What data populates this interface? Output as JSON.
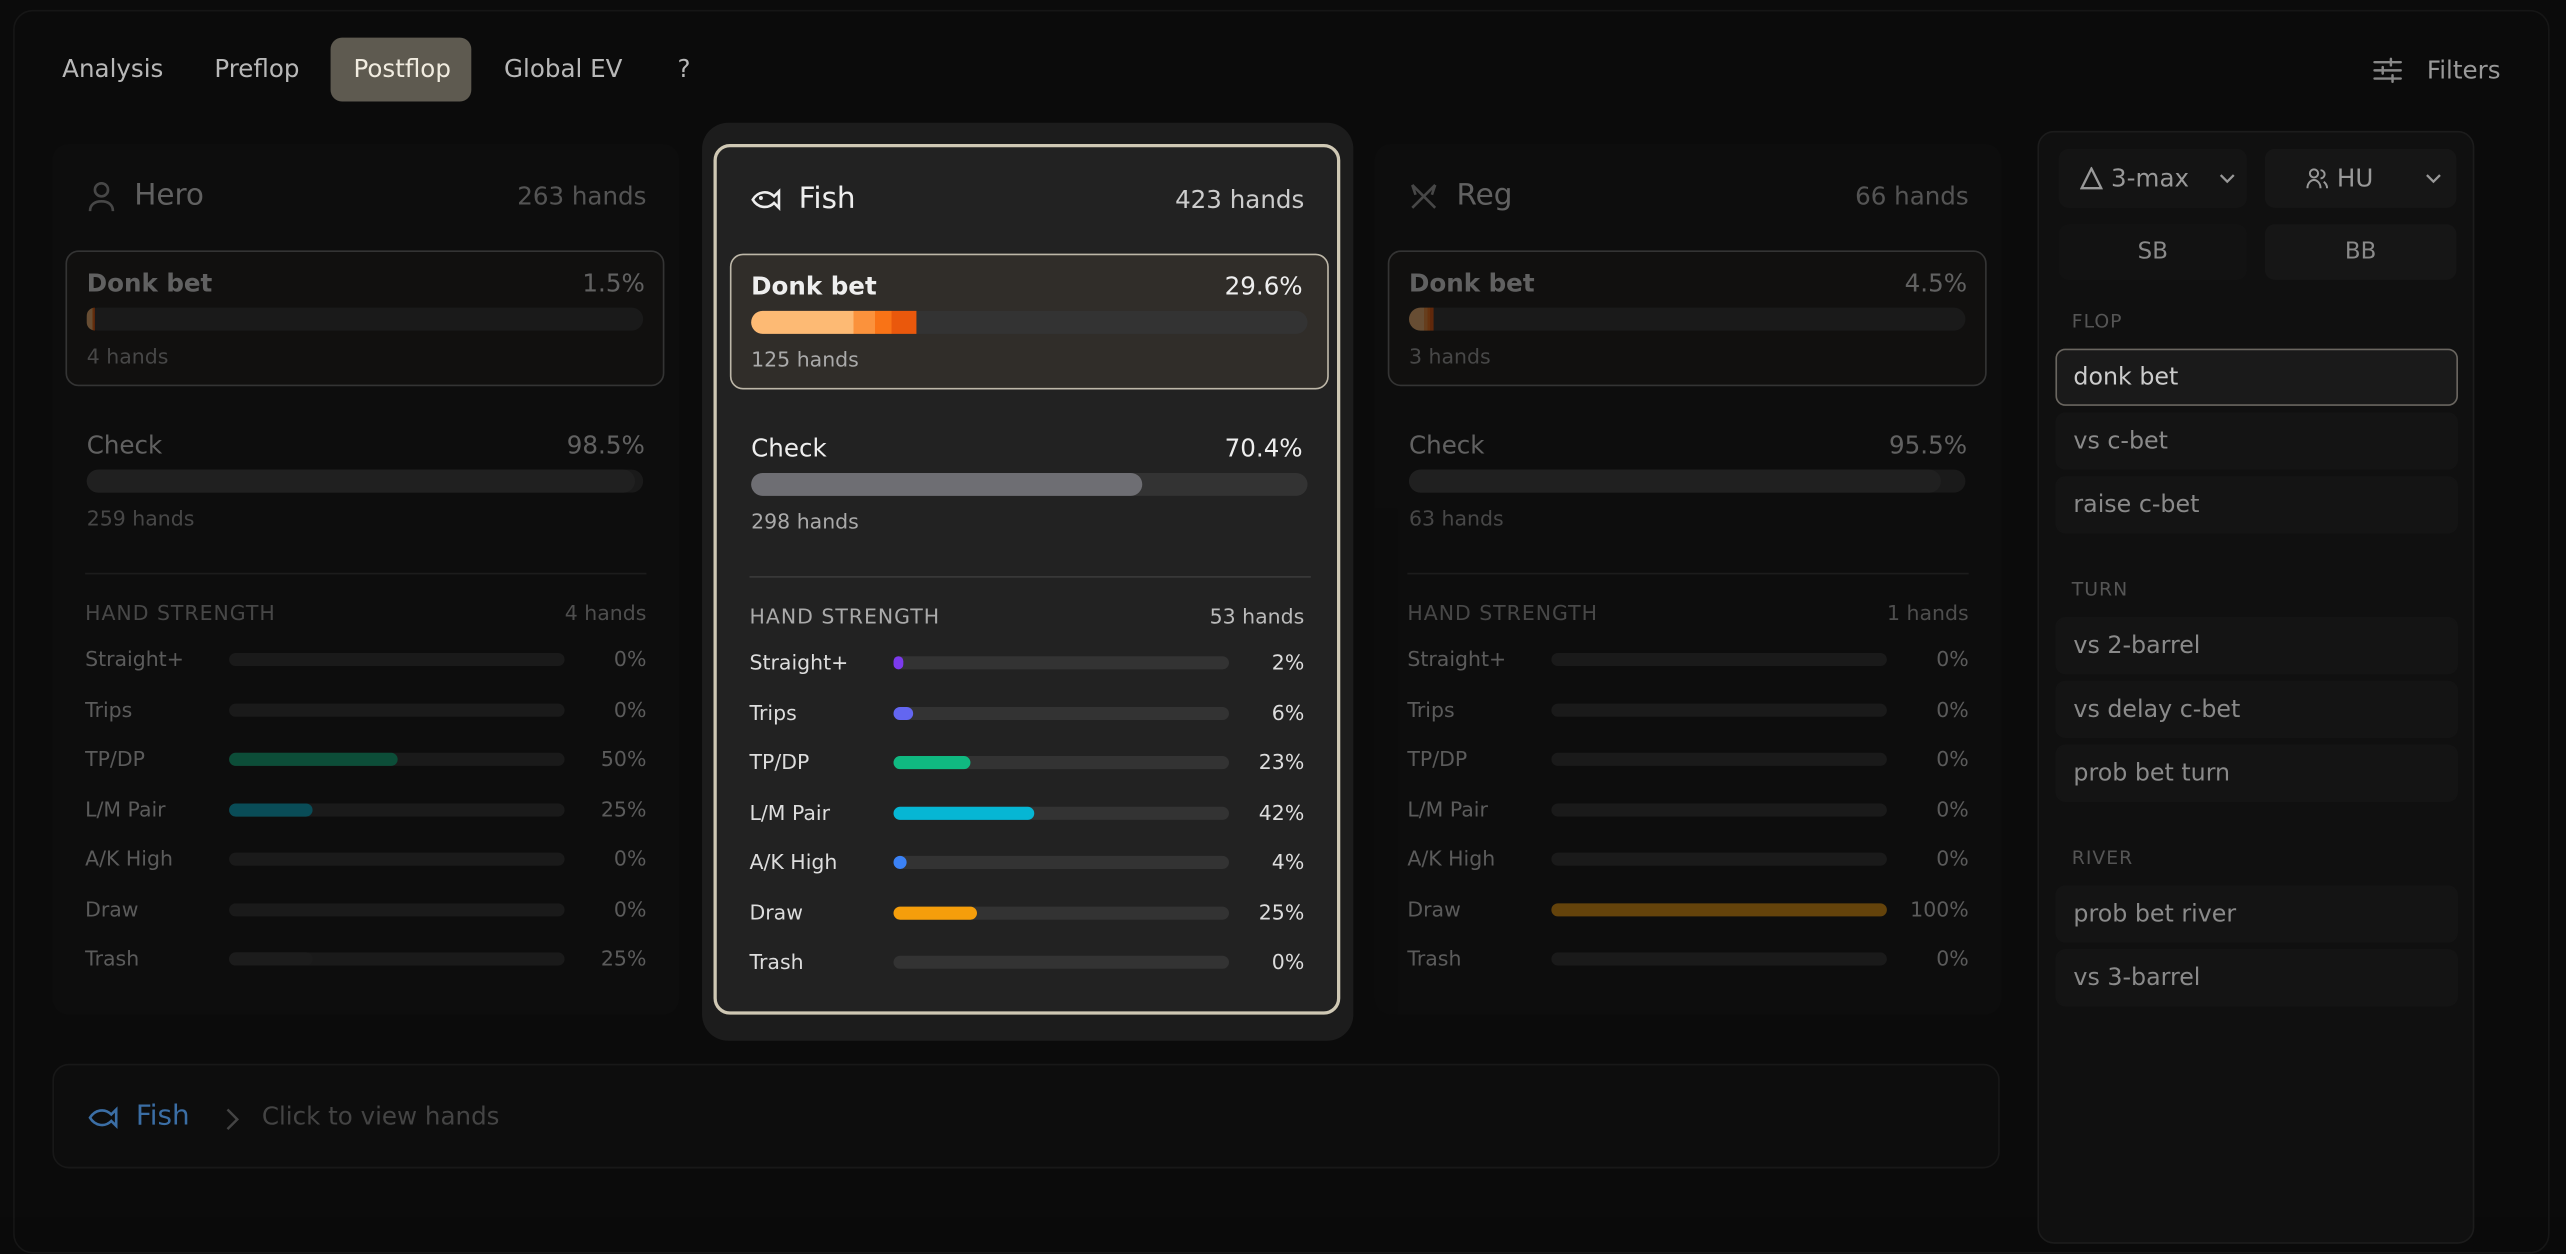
{
  "tabs": {
    "items": [
      "Analysis",
      "Preflop",
      "Postflop",
      "Global EV",
      "?"
    ],
    "active": 2
  },
  "filters": "Filters",
  "players": [
    {
      "name": "Hero",
      "hands": "263 hands",
      "actions": [
        {
          "name": "Donk bet",
          "pct": {
            "value": 1.5,
            "label": "1.5%"
          },
          "hands": "4 hands"
        },
        {
          "name": "Check",
          "pct": {
            "value": 98.5,
            "label": "98.5%"
          },
          "hands": "259 hands"
        }
      ],
      "strength_title": "HAND STRENGTH",
      "strength_hands": "4 hands",
      "rows": [
        {
          "name": "Straight+",
          "pct": {
            "value": 0,
            "label": "0%"
          }
        },
        {
          "name": "Trips",
          "pct": {
            "value": 0,
            "label": "0%"
          }
        },
        {
          "name": "TP/DP",
          "pct": {
            "value": 50,
            "label": "50%"
          }
        },
        {
          "name": "L/M Pair",
          "pct": {
            "value": 25,
            "label": "25%"
          }
        },
        {
          "name": "A/K High",
          "pct": {
            "value": 0,
            "label": "0%"
          }
        },
        {
          "name": "Draw",
          "pct": {
            "value": 0,
            "label": "0%"
          }
        },
        {
          "name": "Trash",
          "pct": {
            "value": 25,
            "label": "25%"
          }
        }
      ]
    },
    {
      "name": "Fish",
      "hands": "423 hands",
      "actions": [
        {
          "name": "Donk bet",
          "pct": {
            "value": 29.6,
            "label": "29.6%"
          },
          "hands": "125 hands"
        },
        {
          "name": "Check",
          "pct": {
            "value": 70.4,
            "label": "70.4%"
          },
          "hands": "298 hands"
        }
      ],
      "strength_title": "HAND STRENGTH",
      "strength_hands": "53 hands",
      "rows": [
        {
          "name": "Straight+",
          "pct": {
            "value": 2,
            "label": "2%"
          }
        },
        {
          "name": "Trips",
          "pct": {
            "value": 6,
            "label": "6%"
          }
        },
        {
          "name": "TP/DP",
          "pct": {
            "value": 23,
            "label": "23%"
          }
        },
        {
          "name": "L/M Pair",
          "pct": {
            "value": 42,
            "label": "42%"
          }
        },
        {
          "name": "A/K High",
          "pct": {
            "value": 4,
            "label": "4%"
          }
        },
        {
          "name": "Draw",
          "pct": {
            "value": 25,
            "label": "25%"
          }
        },
        {
          "name": "Trash",
          "pct": {
            "value": 0,
            "label": "0%"
          }
        }
      ]
    },
    {
      "name": "Reg",
      "hands": "66 hands",
      "actions": [
        {
          "name": "Donk bet",
          "pct": {
            "value": 4.5,
            "label": "4.5%"
          },
          "hands": "3 hands"
        },
        {
          "name": "Check",
          "pct": {
            "value": 95.5,
            "label": "95.5%"
          },
          "hands": "63 hands"
        }
      ],
      "strength_title": "HAND STRENGTH",
      "strength_hands": "1 hands",
      "rows": [
        {
          "name": "Straight+",
          "pct": {
            "value": 0,
            "label": "0%"
          }
        },
        {
          "name": "Trips",
          "pct": {
            "value": 0,
            "label": "0%"
          }
        },
        {
          "name": "TP/DP",
          "pct": {
            "value": 0,
            "label": "0%"
          }
        },
        {
          "name": "L/M Pair",
          "pct": {
            "value": 0,
            "label": "0%"
          }
        },
        {
          "name": "A/K High",
          "pct": {
            "value": 0,
            "label": "0%"
          }
        },
        {
          "name": "Draw",
          "pct": {
            "value": 100,
            "label": "100%"
          }
        },
        {
          "name": "Trash",
          "pct": {
            "value": 0,
            "label": "0%"
          }
        }
      ]
    }
  ],
  "sidebar": {
    "table_size": "3-max",
    "mode": "HU",
    "positions": [
      "SB",
      "BB"
    ],
    "sections": [
      {
        "title": "FLOP",
        "items": [
          "donk bet",
          "vs c-bet",
          "raise c-bet"
        ]
      },
      {
        "title": "TURN",
        "items": [
          "vs 2-barrel",
          "vs delay c-bet",
          "prob bet turn"
        ]
      },
      {
        "title": "RIVER",
        "items": [
          "prob bet river",
          "vs 3-barrel"
        ]
      }
    ]
  },
  "footer": {
    "player": "Fish",
    "hint": "Click to view hands"
  }
}
